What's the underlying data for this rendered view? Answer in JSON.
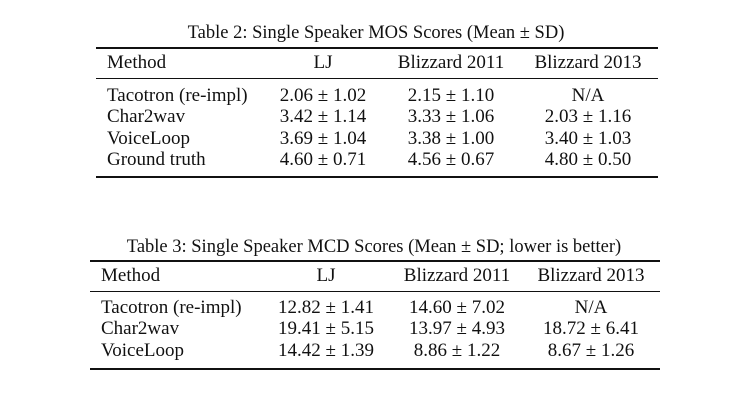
{
  "tables": [
    {
      "caption": "Table 2: Single Speaker MOS Scores (Mean ± SD)",
      "headers": [
        "Method",
        "LJ",
        "Blizzard 2011",
        "Blizzard 2013"
      ],
      "rows": [
        [
          "Tacotron (re-impl)",
          "2.06 ± 1.02",
          "2.15 ± 1.10",
          "N/A"
        ],
        [
          "Char2wav",
          "3.42 ± 1.14",
          "3.33 ± 1.06",
          "2.03 ± 1.16"
        ],
        [
          "VoiceLoop",
          "3.69 ± 1.04",
          "3.38 ± 1.00",
          "3.40 ± 1.03"
        ],
        [
          "Ground truth",
          "4.60 ± 0.71",
          "4.56 ± 0.67",
          "4.80 ± 0.50"
        ]
      ]
    },
    {
      "caption": "Table 3: Single Speaker MCD Scores (Mean ± SD; lower is better)",
      "headers": [
        "Method",
        "LJ",
        "Blizzard 2011",
        "Blizzard 2013"
      ],
      "rows": [
        [
          "Tacotron (re-impl)",
          "12.82 ± 1.41",
          "14.60 ± 7.02",
          "N/A"
        ],
        [
          "Char2wav",
          "19.41 ± 5.15",
          "13.97 ± 4.93",
          "18.72 ± 6.41"
        ],
        [
          "VoiceLoop",
          "14.42 ± 1.39",
          "8.86 ± 1.22",
          "8.67 ± 1.26"
        ]
      ]
    }
  ]
}
